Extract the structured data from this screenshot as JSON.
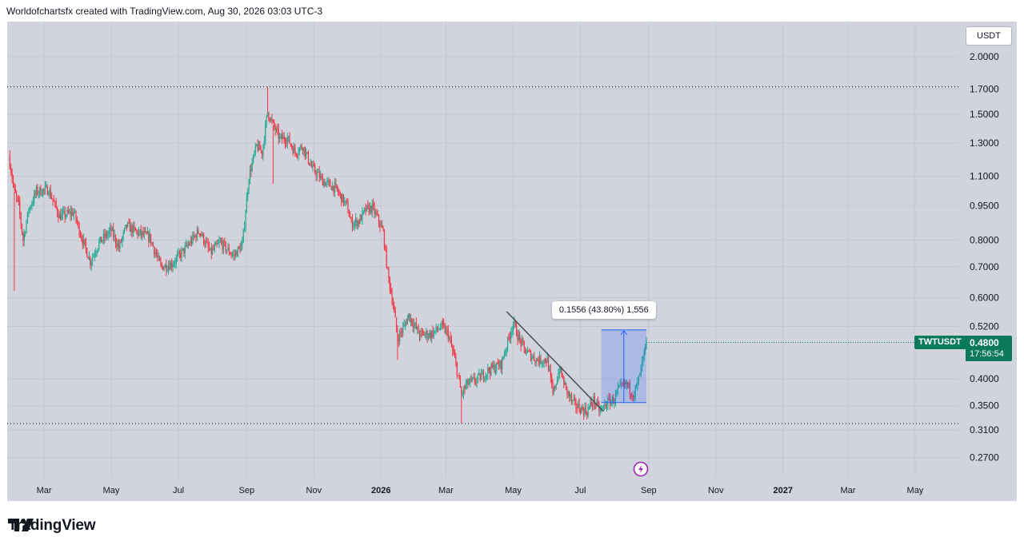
{
  "header": {
    "attribution": "Worldofchartsfx created with TradingView.com, Aug 30, 2026 03:03 UTC-3"
  },
  "toolbar": {
    "currency": "USDT"
  },
  "symbol": {
    "name": "TWTUSDT",
    "price": "0.4800",
    "countdown": "17:56:54"
  },
  "measure": {
    "label": "0.1556 (43.80%) 1,556"
  },
  "brand": {
    "name": "TradingView"
  },
  "colors": {
    "up": "#22ab94",
    "down": "#f23645",
    "background": "#d1d4dc",
    "badge": "#0a7a5a",
    "measure": "#2962ff"
  },
  "chart_data": {
    "type": "candlestick",
    "symbol": "TWTUSDT",
    "y_scale": "log",
    "ylim": [
      0.255,
      2.2
    ],
    "y_ticks": [
      "2.0000",
      "1.7000",
      "1.5000",
      "1.3000",
      "1.1000",
      "0.9500",
      "0.8000",
      "0.7000",
      "0.6000",
      "0.5200",
      "0.4000",
      "0.3500",
      "0.3100",
      "0.2700"
    ],
    "x_labels": [
      "Mar",
      "May",
      "Jul",
      "Sep",
      "Nov",
      "2026",
      "Mar",
      "May",
      "Jul",
      "Sep",
      "Nov",
      "2027",
      "Mar",
      "May"
    ],
    "bold_x_labels": [
      "2026",
      "2027"
    ],
    "price_path": [
      [
        "2025-01-28",
        1.22
      ],
      [
        "2025-02-02",
        1.02
      ],
      [
        "2025-02-06",
        0.95
      ],
      [
        "2025-02-10",
        0.8
      ],
      [
        "2025-02-15",
        0.93
      ],
      [
        "2025-02-22",
        1.02
      ],
      [
        "2025-03-05",
        1.03
      ],
      [
        "2025-03-15",
        0.9
      ],
      [
        "2025-03-28",
        0.92
      ],
      [
        "2025-04-05",
        0.8
      ],
      [
        "2025-04-12",
        0.72
      ],
      [
        "2025-04-20",
        0.79
      ],
      [
        "2025-05-01",
        0.84
      ],
      [
        "2025-05-08",
        0.77
      ],
      [
        "2025-05-15",
        0.86
      ],
      [
        "2025-05-25",
        0.83
      ],
      [
        "2025-06-05",
        0.81
      ],
      [
        "2025-06-15",
        0.7
      ],
      [
        "2025-06-25",
        0.71
      ],
      [
        "2025-07-08",
        0.77
      ],
      [
        "2025-07-20",
        0.84
      ],
      [
        "2025-07-30",
        0.75
      ],
      [
        "2025-08-08",
        0.79
      ],
      [
        "2025-08-20",
        0.74
      ],
      [
        "2025-08-28",
        0.78
      ],
      [
        "2025-09-03",
        1.1
      ],
      [
        "2025-09-10",
        1.28
      ],
      [
        "2025-09-15",
        1.24
      ],
      [
        "2025-09-20",
        1.52
      ],
      [
        "2025-09-25",
        1.42
      ],
      [
        "2025-10-01",
        1.33
      ],
      [
        "2025-10-08",
        1.33
      ],
      [
        "2025-10-15",
        1.24
      ],
      [
        "2025-10-22",
        1.28
      ],
      [
        "2025-10-30",
        1.15
      ],
      [
        "2025-11-10",
        1.07
      ],
      [
        "2025-11-20",
        1.04
      ],
      [
        "2025-12-01",
        0.95
      ],
      [
        "2025-12-05",
        0.87
      ],
      [
        "2025-12-12",
        0.88
      ],
      [
        "2025-12-18",
        0.93
      ],
      [
        "2025-12-24",
        0.94
      ],
      [
        "2025-12-30",
        0.88
      ],
      [
        "2026-01-03",
        0.83
      ],
      [
        "2026-01-07",
        0.68
      ],
      [
        "2026-01-12",
        0.58
      ],
      [
        "2026-01-16",
        0.49
      ],
      [
        "2026-01-22",
        0.52
      ],
      [
        "2026-01-26",
        0.55
      ],
      [
        "2026-02-05",
        0.5
      ],
      [
        "2026-02-15",
        0.5
      ],
      [
        "2026-02-25",
        0.52
      ],
      [
        "2026-03-03",
        0.5
      ],
      [
        "2026-03-10",
        0.43
      ],
      [
        "2026-03-15",
        0.37
      ],
      [
        "2026-03-20",
        0.39
      ],
      [
        "2026-03-30",
        0.4
      ],
      [
        "2026-04-10",
        0.42
      ],
      [
        "2026-04-20",
        0.43
      ],
      [
        "2026-05-01",
        0.53
      ],
      [
        "2026-05-06",
        0.49
      ],
      [
        "2026-05-12",
        0.46
      ],
      [
        "2026-05-22",
        0.44
      ],
      [
        "2026-06-01",
        0.44
      ],
      [
        "2026-06-06",
        0.37
      ],
      [
        "2026-06-12",
        0.42
      ],
      [
        "2026-06-18",
        0.38
      ],
      [
        "2026-06-24",
        0.355
      ],
      [
        "2026-07-01",
        0.345
      ],
      [
        "2026-07-07",
        0.34
      ],
      [
        "2026-07-13",
        0.36
      ],
      [
        "2026-07-19",
        0.34
      ],
      [
        "2026-07-25",
        0.355
      ],
      [
        "2026-07-31",
        0.36
      ],
      [
        "2026-08-05",
        0.38
      ],
      [
        "2026-08-12",
        0.39
      ],
      [
        "2026-08-18",
        0.37
      ],
      [
        "2026-08-22",
        0.39
      ],
      [
        "2026-08-26",
        0.43
      ],
      [
        "2026-08-30",
        0.48
      ]
    ],
    "spikes": [
      {
        "date": "2025-02-02",
        "low": 0.62
      },
      {
        "date": "2025-09-20",
        "high": 1.72
      },
      {
        "date": "2025-09-25",
        "low": 1.06
      },
      {
        "date": "2026-01-16",
        "low": 0.44
      },
      {
        "date": "2026-03-15",
        "low": 0.32
      }
    ],
    "reference_lines": [
      {
        "value": 1.72,
        "style": "dotted"
      },
      {
        "value": 0.32,
        "style": "dotted"
      }
    ],
    "trendline": {
      "from": [
        "2026-04-25",
        0.56
      ],
      "to": [
        "2026-07-22",
        0.34
      ]
    },
    "measure_range": {
      "from": [
        "2026-07-20",
        0.3554
      ],
      "to": [
        "2026-08-30",
        0.511
      ],
      "change": "0.1556 (43.80%) 1,556"
    },
    "last_price": 0.48
  }
}
